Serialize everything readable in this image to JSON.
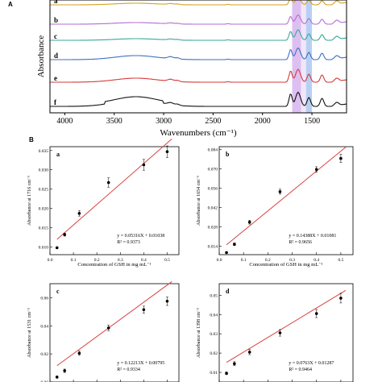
{
  "panel_a_label": "A",
  "panel_b_label": "B",
  "chart_data": [
    {
      "type": "line",
      "id": "ftir",
      "xlabel": "Wavenumbers (cm⁻¹)",
      "ylabel": "Absorbance",
      "xlim": [
        4150,
        1150
      ],
      "x_reversed": true,
      "x_ticks": [
        4000,
        3500,
        3000,
        2500,
        2000,
        1500
      ],
      "grid": false,
      "highlight_bands": [
        {
          "from": 1700,
          "to": 1610,
          "color": "#d8b4ee"
        },
        {
          "from": 1610,
          "to": 1560,
          "color": "#efe2f7"
        },
        {
          "from": 1560,
          "to": 1500,
          "color": "#aac8f0"
        }
      ],
      "series": [
        {
          "name": "a",
          "color": "#d6a21e"
        },
        {
          "name": "b",
          "color": "#b46ecf"
        },
        {
          "name": "c",
          "color": "#3aa79a"
        },
        {
          "name": "d",
          "color": "#3f6fc2"
        },
        {
          "name": "e",
          "color": "#d43a3a"
        },
        {
          "name": "f",
          "color": "#111111"
        }
      ]
    },
    {
      "type": "scatter",
      "id": "a",
      "panel_letter": "a",
      "xlabel": "Concentration of GSH in mg mL⁻¹",
      "ylabel": "Absorbance at 1716 cm⁻¹",
      "xlim": [
        0,
        0.55
      ],
      "ylim": [
        0.008,
        0.036
      ],
      "x_ticks": [
        0.0,
        0.1,
        0.2,
        0.3,
        0.4,
        0.5
      ],
      "y_ticks": [
        0.01,
        0.015,
        0.02,
        0.025,
        0.03,
        0.035
      ],
      "x_tick_labels": [
        "0.0",
        "0.1",
        "0.2",
        "0.3",
        "0.4",
        "0.5"
      ],
      "y_tick_labels": [
        "0.010",
        "0.015",
        "0.020",
        "0.025",
        "0.030",
        "0.035"
      ],
      "x": [
        0.03,
        0.0625,
        0.125,
        0.25,
        0.4,
        0.5
      ],
      "y": [
        0.0098,
        0.0132,
        0.0187,
        0.0267,
        0.0313,
        0.0347
      ],
      "err": [
        0.0002,
        0.0004,
        0.0007,
        0.0012,
        0.0014,
        0.0015
      ],
      "fit": {
        "slope": 0.05316,
        "intercept": 0.01038
      },
      "equation": "y = 0.05316X + 0.01038",
      "r2": "R² = 0.9373"
    },
    {
      "type": "scatter",
      "id": "b",
      "panel_letter": "b",
      "xlabel": "Concentration of GSH in mg mL⁻¹",
      "ylabel": "Absorbance at 1654 cm⁻¹",
      "xlim": [
        0,
        0.55
      ],
      "ylim": [
        0.008,
        0.086
      ],
      "x_ticks": [
        0.0,
        0.1,
        0.2,
        0.3,
        0.4,
        0.5
      ],
      "y_ticks": [
        0.014,
        0.028,
        0.042,
        0.056,
        0.07,
        0.084
      ],
      "x_tick_labels": [
        "0.0",
        "0.1",
        "0.2",
        "0.3",
        "0.4",
        "0.5"
      ],
      "y_tick_labels": [
        "0.014",
        "0.028",
        "0.042",
        "0.056",
        "0.070",
        "0.084"
      ],
      "x": [
        0.03,
        0.0625,
        0.125,
        0.25,
        0.4,
        0.5
      ],
      "y": [
        0.0095,
        0.0155,
        0.0315,
        0.0535,
        0.0695,
        0.0775
      ],
      "err": [
        0.0006,
        0.001,
        0.0014,
        0.0018,
        0.002,
        0.003
      ],
      "fit": {
        "slope": 0.14388,
        "intercept": 0.01081
      },
      "equation": "y = 0.14388X + 0.01081",
      "r2": "R² = 0.9656"
    },
    {
      "type": "scatter",
      "id": "c",
      "panel_letter": "c",
      "xlabel": "",
      "ylabel": "Absorbance at 1531 cm⁻¹",
      "xlim": [
        0,
        0.55
      ],
      "ylim": [
        0,
        0.07
      ],
      "x_ticks": [
        0.0,
        0.1,
        0.2,
        0.3,
        0.4,
        0.5
      ],
      "y_ticks": [
        0.0,
        0.02,
        0.04,
        0.06
      ],
      "x_tick_labels": [],
      "y_tick_labels": [
        "0.00",
        "0.02",
        "0.04",
        "0.06"
      ],
      "x": [
        0.03,
        0.0625,
        0.125,
        0.25,
        0.4,
        0.5
      ],
      "y": [
        0.0035,
        0.008,
        0.0205,
        0.0385,
        0.0515,
        0.0575
      ],
      "err": [
        0.0008,
        0.0012,
        0.0015,
        0.002,
        0.0025,
        0.003
      ],
      "fit": {
        "slope": 0.12213,
        "intercept": 0.00795
      },
      "equation": "y = 0.12213X + 0.00795",
      "r2": "R² = 0.9334"
    },
    {
      "type": "scatter",
      "id": "d",
      "panel_letter": "d",
      "xlabel": "",
      "ylabel": "Absorbance at 1398 cm⁻¹",
      "xlim": [
        0,
        0.55
      ],
      "ylim": [
        0.005,
        0.056
      ],
      "x_ticks": [
        0.0,
        0.1,
        0.2,
        0.3,
        0.4,
        0.5
      ],
      "y_ticks": [
        0.01,
        0.02,
        0.03,
        0.04,
        0.05
      ],
      "x_tick_labels": [],
      "y_tick_labels": [
        "0.01",
        "0.02",
        "0.03",
        "0.04",
        "0.05"
      ],
      "x": [
        0.03,
        0.0625,
        0.125,
        0.25,
        0.4,
        0.5
      ],
      "y": [
        0.0095,
        0.0145,
        0.0205,
        0.0305,
        0.0405,
        0.0485
      ],
      "err": [
        0.0007,
        0.001,
        0.0013,
        0.0017,
        0.0021,
        0.0025
      ],
      "fit": {
        "slope": 0.0763,
        "intercept": 0.01287
      },
      "equation": "y = 0.0763X + 0.01287",
      "r2": "R² = 0.9464"
    }
  ]
}
